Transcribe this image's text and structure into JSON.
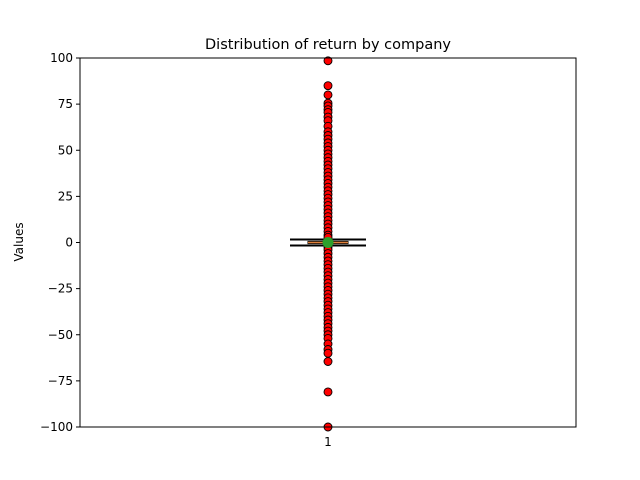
{
  "chart_data": {
    "type": "box",
    "title": "Distribution of return by company",
    "xlabel": "",
    "ylabel": "Values",
    "ylim": [
      -100,
      100
    ],
    "yticks": [
      -100,
      -75,
      -50,
      -25,
      0,
      25,
      50,
      75,
      100
    ],
    "categories": [
      "1"
    ],
    "grid": false,
    "legend": "none",
    "boxes": [
      {
        "category": "1",
        "q1": -0.6,
        "median": 0.0,
        "q3": 0.6,
        "whisker_low": -1.6,
        "whisker_high": 1.6,
        "mean": 0.0,
        "outliers": [
          98.5,
          85,
          80,
          75.5,
          74,
          72,
          70.5,
          68,
          66,
          63,
          60,
          58,
          56,
          54,
          52,
          50,
          48,
          46,
          44,
          42,
          40,
          38,
          36,
          34,
          32,
          30,
          28,
          26,
          24,
          22,
          20,
          18,
          16,
          14,
          12,
          10,
          8,
          6,
          4,
          2.8,
          -2.8,
          -4,
          -6,
          -8,
          -10,
          -12,
          -14,
          -16,
          -18,
          -20,
          -22,
          -24,
          -26,
          -28,
          -30,
          -32,
          -34,
          -36,
          -38,
          -40,
          -42,
          -44,
          -46,
          -48,
          -50,
          -52,
          -55,
          -58,
          -60,
          -64.5,
          -81,
          -100
        ]
      }
    ],
    "colors": {
      "box_fill": "#e0813a",
      "outlier_fill": "#ff0000",
      "mean_marker": "#2ca02c",
      "line": "#000000"
    }
  }
}
